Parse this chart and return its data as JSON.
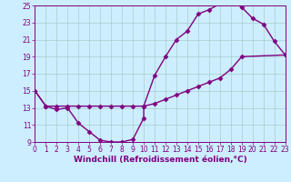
{
  "xlabel": "Windchill (Refroidissement éolien,°C)",
  "xlim": [
    0,
    23
  ],
  "ylim": [
    9,
    25
  ],
  "xticks": [
    0,
    1,
    2,
    3,
    4,
    5,
    6,
    7,
    8,
    9,
    10,
    11,
    12,
    13,
    14,
    15,
    16,
    17,
    18,
    19,
    20,
    21,
    22,
    23
  ],
  "yticks": [
    9,
    11,
    13,
    15,
    17,
    19,
    21,
    23,
    25
  ],
  "line_color": "#800080",
  "bg_color": "#cceeff",
  "grid_color": "#aacccc",
  "line1": [
    [
      0,
      15
    ],
    [
      1,
      13.2
    ],
    [
      2,
      12.8
    ],
    [
      3,
      13.0
    ],
    [
      4,
      11.2
    ],
    [
      5,
      10.2
    ],
    [
      6,
      9.2
    ],
    [
      7,
      9.0
    ],
    [
      8,
      9.0
    ],
    [
      9,
      9.3
    ],
    [
      10,
      11.8
    ],
    [
      10,
      13.2
    ],
    [
      11,
      16.8
    ],
    [
      12,
      19.0
    ],
    [
      13,
      21.0
    ],
    [
      14,
      22.0
    ],
    [
      15,
      24.0
    ],
    [
      16,
      24.5
    ],
    [
      17,
      25.2
    ],
    [
      18,
      25.5
    ],
    [
      19,
      24.8
    ],
    [
      20,
      23.5
    ],
    [
      21,
      22.8
    ],
    [
      22,
      20.8
    ],
    [
      23,
      19.2
    ]
  ],
  "line2": [
    [
      0,
      15
    ],
    [
      1,
      13.2
    ],
    [
      2,
      13.2
    ],
    [
      3,
      13.2
    ],
    [
      4,
      13.2
    ],
    [
      5,
      13.2
    ],
    [
      6,
      13.2
    ],
    [
      7,
      13.2
    ],
    [
      8,
      13.2
    ],
    [
      9,
      13.2
    ],
    [
      10,
      13.2
    ],
    [
      11,
      13.5
    ],
    [
      12,
      14.0
    ],
    [
      13,
      14.5
    ],
    [
      14,
      15.0
    ],
    [
      15,
      15.5
    ],
    [
      16,
      16.0
    ],
    [
      17,
      16.5
    ],
    [
      18,
      17.5
    ],
    [
      19,
      19.0
    ],
    [
      23,
      19.2
    ]
  ],
  "marker": "D",
  "marker_size": 2.5,
  "line_width": 1.0,
  "tick_fontsize": 5.5,
  "label_fontsize": 6.5
}
